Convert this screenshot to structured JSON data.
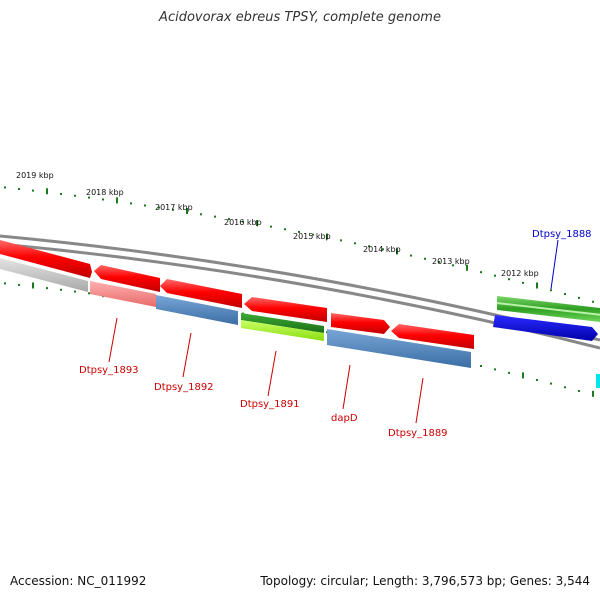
{
  "title": "Acidovorax ebreus TPSY, complete genome",
  "footer": {
    "accession": "Accession: NC_011992",
    "summary": "Topology: circular; Length: 3,796,573 bp; Genes: 3,544"
  },
  "ruler": {
    "ticks": [
      "2019 kbp",
      "2018 kbp",
      "2017 kbp",
      "2016 kbp",
      "2015 kbp",
      "2014 kbp",
      "2013 kbp",
      "2012 kbp"
    ]
  },
  "genes": [
    {
      "label": "Dtpsy_1888",
      "color": "#0000cc"
    },
    {
      "label": "Dtpsy_1893",
      "color": "#cc0000"
    },
    {
      "label": "Dtpsy_1892",
      "color": "#cc0000"
    },
    {
      "label": "Dtpsy_1891",
      "color": "#cc0000"
    },
    {
      "label": "dapD",
      "color": "#cc0000"
    },
    {
      "label": "Dtpsy_1889",
      "color": "#cc0000"
    }
  ]
}
